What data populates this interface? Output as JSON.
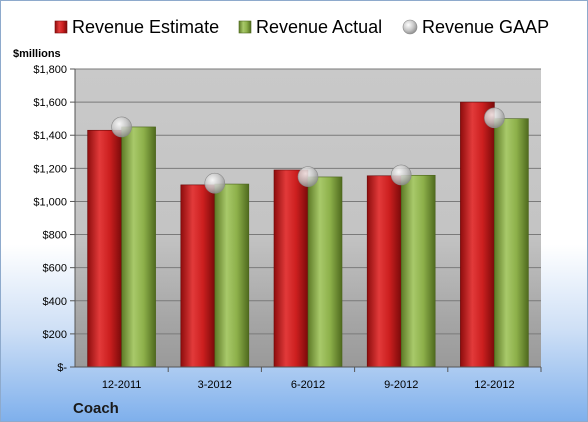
{
  "chart_data": {
    "type": "bar",
    "unit_label": "$millions",
    "categories": [
      "12-2011",
      "3-2012",
      "6-2012",
      "9-2012",
      "12-2012"
    ],
    "series": [
      {
        "name": "Revenue Estimate",
        "type": "bar",
        "color": "#cc1f1f",
        "values": [
          1430,
          1100,
          1190,
          1155,
          1600
        ]
      },
      {
        "name": "Revenue Actual",
        "type": "bar",
        "color": "#8db04a",
        "values": [
          1450,
          1105,
          1148,
          1158,
          1500
        ]
      },
      {
        "name": "Revenue GAAP",
        "type": "scatter",
        "color": "#b8b8b8",
        "values": [
          1450,
          1110,
          1150,
          1160,
          1505
        ]
      }
    ],
    "ylim": [
      0,
      1800
    ],
    "yticks": [
      0,
      200,
      400,
      600,
      800,
      1000,
      1200,
      1400,
      1600,
      1800
    ],
    "ytick_labels": [
      "$-",
      "$200",
      "$400",
      "$600",
      "$800",
      "$1,000",
      "$1,200",
      "$1,400",
      "$1,600",
      "$1,800"
    ],
    "grid": true,
    "legend_position": "top"
  },
  "company": "Coach"
}
